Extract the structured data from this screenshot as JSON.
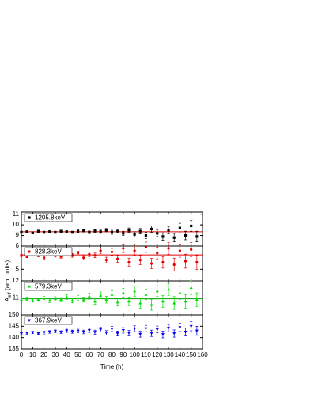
{
  "chart_data": [
    {
      "type": "scatter",
      "xlim": [
        0,
        160
      ],
      "xticks": [
        0,
        10,
        20,
        30,
        40,
        50,
        60,
        70,
        80,
        90,
        100,
        110,
        120,
        130,
        140,
        150,
        160
      ],
      "x": [
        0,
        5,
        10,
        15,
        20,
        25,
        30,
        35,
        40,
        45,
        50,
        55,
        60,
        65,
        70,
        75,
        80,
        85,
        90,
        95,
        100,
        105,
        110,
        115,
        120,
        125,
        130,
        135,
        140,
        145,
        150,
        155
      ],
      "ylim": [
        8,
        11.2
      ],
      "yticks": [
        9,
        10,
        11
      ],
      "fit": 9.35,
      "fit_color": "#e00000",
      "series": [
        {
          "name": "1205.8keV",
          "color": "#000000",
          "marker": "square",
          "values": [
            9.3,
            9.35,
            9.25,
            9.4,
            9.3,
            9.35,
            9.3,
            9.4,
            9.35,
            9.3,
            9.4,
            9.45,
            9.3,
            9.4,
            9.35,
            9.5,
            9.3,
            9.4,
            9.2,
            9.5,
            9.1,
            9.4,
            9.0,
            9.6,
            9.2,
            8.9,
            9.5,
            8.8,
            9.7,
            9.0,
            9.9,
            8.9
          ],
          "errors": [
            0.1,
            0.1,
            0.1,
            0.1,
            0.1,
            0.1,
            0.1,
            0.1,
            0.1,
            0.1,
            0.12,
            0.12,
            0.12,
            0.15,
            0.15,
            0.15,
            0.18,
            0.18,
            0.2,
            0.2,
            0.25,
            0.25,
            0.3,
            0.3,
            0.3,
            0.35,
            0.35,
            0.4,
            0.45,
            0.4,
            0.5,
            0.5
          ]
        }
      ]
    },
    {
      "type": "scatter",
      "xlim": [
        0,
        160
      ],
      "xticks": [
        0,
        10,
        20,
        30,
        40,
        50,
        60,
        70,
        80,
        90,
        100,
        110,
        120,
        130,
        140,
        150,
        160
      ],
      "x": [
        0,
        5,
        10,
        15,
        20,
        25,
        30,
        35,
        40,
        45,
        50,
        55,
        60,
        65,
        70,
        75,
        80,
        85,
        90,
        95,
        100,
        105,
        110,
        115,
        120,
        125,
        130,
        135,
        140,
        145,
        150,
        155
      ],
      "ylim": [
        4.5,
        6
      ],
      "yticks": [
        5,
        6
      ],
      "fit": 5.62,
      "fit_color": "#e00000",
      "series": [
        {
          "name": "828.3keV",
          "color": "#e00000",
          "marker": "circle",
          "values": [
            5.6,
            5.55,
            5.65,
            5.6,
            5.5,
            5.7,
            5.6,
            5.55,
            5.65,
            5.6,
            5.7,
            5.5,
            5.65,
            5.6,
            5.8,
            5.4,
            5.75,
            5.45,
            5.9,
            5.3,
            5.8,
            5.4,
            5.95,
            5.25,
            5.7,
            5.3,
            5.9,
            5.2,
            5.8,
            5.35,
            5.85,
            5.3
          ],
          "errors": [
            0.05,
            0.05,
            0.05,
            0.06,
            0.06,
            0.06,
            0.07,
            0.07,
            0.08,
            0.08,
            0.08,
            0.09,
            0.1,
            0.1,
            0.12,
            0.12,
            0.15,
            0.15,
            0.18,
            0.18,
            0.2,
            0.2,
            0.22,
            0.22,
            0.25,
            0.25,
            0.25,
            0.28,
            0.28,
            0.3,
            0.3,
            0.3
          ]
        }
      ]
    },
    {
      "type": "scatter",
      "xlim": [
        0,
        160
      ],
      "xticks": [
        0,
        10,
        20,
        30,
        40,
        50,
        60,
        70,
        80,
        90,
        100,
        110,
        120,
        130,
        140,
        150,
        160
      ],
      "x": [
        0,
        5,
        10,
        15,
        20,
        25,
        30,
        35,
        40,
        45,
        50,
        55,
        60,
        65,
        70,
        75,
        80,
        85,
        90,
        95,
        100,
        105,
        110,
        115,
        120,
        125,
        130,
        135,
        140,
        145,
        150,
        155
      ],
      "ylim": [
        10,
        12
      ],
      "yticks": [
        11,
        12
      ],
      "fit": 10.95,
      "fit_color": "#00a000",
      "series": [
        {
          "name": "579.3keV",
          "color": "#00dd00",
          "marker": "triangle-up",
          "values": [
            10.9,
            10.95,
            10.85,
            10.9,
            11.0,
            10.85,
            10.95,
            10.9,
            11.05,
            10.85,
            11.0,
            10.9,
            11.1,
            10.8,
            11.15,
            10.9,
            11.2,
            10.75,
            11.3,
            10.8,
            11.4,
            10.7,
            11.2,
            10.6,
            11.4,
            10.8,
            11.5,
            10.7,
            11.3,
            10.8,
            11.6,
            10.9
          ],
          "errors": [
            0.1,
            0.1,
            0.1,
            0.1,
            0.1,
            0.12,
            0.12,
            0.12,
            0.14,
            0.14,
            0.15,
            0.15,
            0.18,
            0.18,
            0.2,
            0.2,
            0.22,
            0.22,
            0.25,
            0.25,
            0.3,
            0.3,
            0.3,
            0.32,
            0.32,
            0.35,
            0.35,
            0.38,
            0.38,
            0.4,
            0.4,
            0.4
          ]
        }
      ]
    },
    {
      "type": "scatter",
      "xlim": [
        0,
        160
      ],
      "xticks": [
        0,
        10,
        20,
        30,
        40,
        50,
        60,
        70,
        80,
        90,
        100,
        110,
        120,
        130,
        140,
        150,
        160
      ],
      "x": [
        0,
        5,
        10,
        15,
        20,
        25,
        30,
        35,
        40,
        45,
        50,
        55,
        60,
        65,
        70,
        75,
        80,
        85,
        90,
        95,
        100,
        105,
        110,
        115,
        120,
        125,
        130,
        135,
        140,
        145,
        150,
        155
      ],
      "ylim": [
        135,
        150
      ],
      "yticks": [
        135,
        140,
        145,
        150
      ],
      "fit": 142.5,
      "fit_color": "#0000cc",
      "x_label": "Time (h)",
      "series": [
        {
          "name": "367.9keV",
          "color": "#0000ee",
          "marker": "triangle-down",
          "values": [
            141.8,
            142,
            142.3,
            141.9,
            142.2,
            142.5,
            142.8,
            142.4,
            143,
            142.6,
            142.9,
            142.5,
            143.2,
            142.4,
            143.5,
            142.1,
            143.8,
            141.8,
            143.2,
            142,
            143.9,
            141.5,
            144,
            141.9,
            143.6,
            141.4,
            144.2,
            141.8,
            144.5,
            142.5,
            145,
            143
          ],
          "errors": [
            0.5,
            0.5,
            0.5,
            0.5,
            0.6,
            0.6,
            0.6,
            0.6,
            0.7,
            0.7,
            0.8,
            0.8,
            0.9,
            0.9,
            1,
            1,
            1.1,
            1.1,
            1.2,
            1.2,
            1.3,
            1.3,
            1.4,
            1.4,
            1.5,
            1.5,
            1.6,
            1.6,
            1.8,
            1.8,
            2,
            2
          ]
        }
      ]
    }
  ],
  "y_label": {
    "main": "A",
    "sub": "eff",
    "rest": " (arb. units)"
  }
}
